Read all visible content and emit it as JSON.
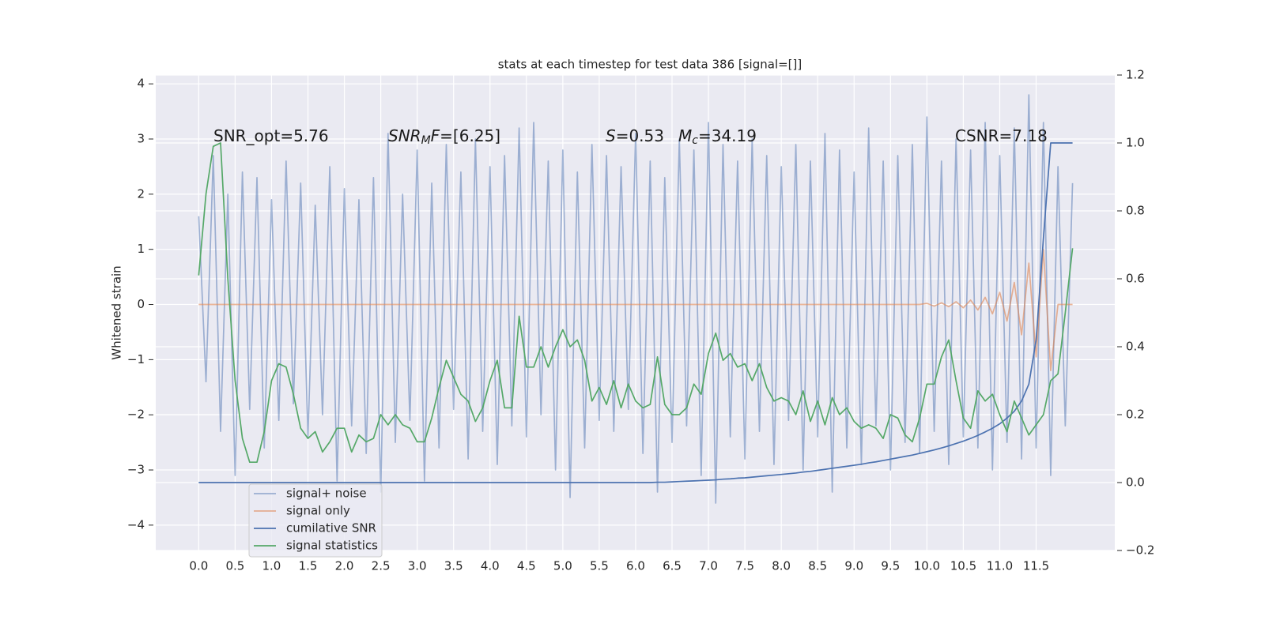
{
  "chart_data": {
    "type": "line",
    "title": "stats at each timestep for test data 386 [signal=[]]",
    "ylabel": "Whitened strain",
    "annotations": [
      [
        {
          "text": "SNR_opt=5.76"
        }
      ],
      [
        {
          "text": "SNR",
          "style": "italic"
        },
        {
          "text": "M",
          "style": "italic-sub"
        },
        {
          "text": "F",
          "style": "italic"
        },
        {
          "text": "=[6.25]"
        }
      ],
      [
        {
          "text": "S",
          "style": "italic"
        },
        {
          "text": "=0.53"
        }
      ],
      [
        {
          "text": "M",
          "style": "italic"
        },
        {
          "text": "c",
          "style": "italic-sub"
        },
        {
          "text": "=34.19"
        }
      ],
      [
        {
          "text": "CSNR=7.18"
        }
      ]
    ],
    "x": [
      0,
      0.1,
      0.2,
      0.3,
      0.4,
      0.5,
      0.6,
      0.7,
      0.8,
      0.9,
      1,
      1.1,
      1.2,
      1.3,
      1.4,
      1.5,
      1.6,
      1.7,
      1.8,
      1.9,
      2,
      2.1,
      2.2,
      2.3,
      2.4,
      2.5,
      2.6,
      2.7,
      2.8,
      2.9,
      3,
      3.1,
      3.2,
      3.3,
      3.4,
      3.5,
      3.6,
      3.7,
      3.8,
      3.9,
      4,
      4.1,
      4.2,
      4.3,
      4.4,
      4.5,
      4.6,
      4.7,
      4.8,
      4.9,
      5,
      5.1,
      5.2,
      5.3,
      5.4,
      5.5,
      5.6,
      5.7,
      5.8,
      5.9,
      6,
      6.1,
      6.2,
      6.3,
      6.4,
      6.5,
      6.6,
      6.7,
      6.8,
      6.9,
      7,
      7.1,
      7.2,
      7.3,
      7.4,
      7.5,
      7.6,
      7.7,
      7.8,
      7.9,
      8,
      8.1,
      8.2,
      8.3,
      8.4,
      8.5,
      8.6,
      8.7,
      8.8,
      8.9,
      9,
      9.1,
      9.2,
      9.3,
      9.4,
      9.5,
      9.6,
      9.7,
      9.8,
      9.9,
      10,
      10.1,
      10.2,
      10.3,
      10.4,
      10.5,
      10.6,
      10.7,
      10.8,
      10.9,
      11,
      11.1,
      11.2,
      11.3,
      11.4,
      11.5,
      11.6,
      11.7,
      11.8,
      11.9,
      12
    ],
    "series": [
      {
        "name": "signal+ noise",
        "color": "#4c72b0",
        "opacity": 0.5,
        "values": [
          1.6,
          -1.4,
          2.7,
          -2.3,
          2.0,
          -3.1,
          2.4,
          -1.9,
          2.3,
          -2.6,
          1.9,
          -2.1,
          2.6,
          -1.8,
          2.2,
          -2.4,
          1.8,
          -2.0,
          2.5,
          -3.2,
          2.1,
          -2.2,
          1.9,
          -2.7,
          2.3,
          -3.4,
          3.1,
          -2.5,
          2.0,
          -2.1,
          2.8,
          -3.2,
          2.2,
          -2.6,
          2.9,
          -1.9,
          2.4,
          -2.8,
          3.0,
          -2.3,
          2.5,
          -2.9,
          2.7,
          -2.2,
          3.2,
          -2.4,
          3.3,
          -2.0,
          2.6,
          -3.0,
          2.8,
          -3.5,
          2.4,
          -2.6,
          2.9,
          -2.1,
          2.7,
          -2.3,
          2.5,
          -1.9,
          3.1,
          -2.7,
          2.6,
          -3.4,
          2.3,
          -2.5,
          3.0,
          -2.2,
          2.8,
          -3.1,
          3.3,
          -3.6,
          2.9,
          -2.4,
          2.6,
          -2.8,
          3.0,
          -2.3,
          2.7,
          -2.9,
          2.5,
          -2.1,
          2.9,
          -3.0,
          2.6,
          -2.4,
          3.1,
          -3.4,
          2.8,
          -2.6,
          2.4,
          -2.9,
          3.2,
          -2.2,
          2.6,
          -3.0,
          2.7,
          -2.5,
          2.9,
          -2.7,
          3.4,
          -2.3,
          2.6,
          -2.9,
          3.0,
          -2.4,
          2.8,
          -2.6,
          3.3,
          -3.0,
          2.7,
          -2.5,
          3.2,
          -2.8,
          3.8,
          -2.6,
          3.3,
          -3.1,
          2.5,
          -2.2,
          2.2
        ]
      },
      {
        "name": "signal only",
        "color": "#dd8452",
        "opacity": 0.6,
        "values": [
          0,
          0,
          0,
          0,
          0,
          0,
          0,
          0,
          0,
          0,
          0,
          0,
          0,
          0,
          0,
          0,
          0,
          0,
          0,
          0,
          0,
          0,
          0,
          0,
          0,
          0,
          0,
          0,
          0,
          0,
          0,
          0,
          0,
          0,
          0,
          0,
          0,
          0,
          0,
          0,
          0,
          0,
          0,
          0,
          0,
          0,
          0,
          0,
          0,
          0,
          0,
          0,
          0,
          0,
          0,
          0,
          0,
          0,
          0,
          0,
          0,
          0,
          0,
          0,
          0,
          0,
          0,
          0,
          0,
          0,
          0,
          0,
          0,
          0,
          0,
          0,
          0,
          0,
          0,
          0,
          0,
          0,
          0,
          0,
          0,
          0,
          0,
          0,
          0,
          0,
          0,
          0,
          0,
          0,
          0,
          0,
          0,
          0,
          0,
          0,
          0.02,
          -0.03,
          0.03,
          -0.04,
          0.05,
          -0.06,
          0.08,
          -0.1,
          0.13,
          -0.17,
          0.22,
          -0.3,
          0.4,
          -0.55,
          0.75,
          -0.95,
          1.0,
          -1.2,
          0,
          0,
          0
        ]
      },
      {
        "name": "cumilative SNR",
        "color": "#4c72b0",
        "opacity": 1,
        "axis": "y2",
        "values": [
          0,
          0,
          0,
          0,
          0,
          0,
          0,
          0,
          0,
          0,
          0,
          0,
          0,
          0,
          0,
          0,
          0,
          0,
          0,
          0,
          0,
          0,
          0,
          0,
          0,
          0,
          0,
          0,
          0,
          0,
          0,
          0,
          0,
          0,
          0,
          0,
          0,
          0,
          0,
          0,
          0,
          0,
          0,
          0,
          0,
          0,
          0,
          0,
          0,
          0,
          0,
          0,
          0,
          0,
          0,
          0,
          0,
          0,
          0,
          0,
          0,
          0,
          0,
          0.001,
          0.001,
          0.002,
          0.003,
          0.004,
          0.005,
          0.006,
          0.007,
          0.008,
          0.01,
          0.011,
          0.013,
          0.014,
          0.016,
          0.018,
          0.02,
          0.022,
          0.024,
          0.026,
          0.028,
          0.031,
          0.033,
          0.036,
          0.039,
          0.042,
          0.045,
          0.048,
          0.051,
          0.054,
          0.058,
          0.061,
          0.065,
          0.069,
          0.073,
          0.077,
          0.081,
          0.086,
          0.091,
          0.096,
          0.102,
          0.108,
          0.115,
          0.122,
          0.13,
          0.139,
          0.149,
          0.16,
          0.173,
          0.19,
          0.21,
          0.24,
          0.29,
          0.42,
          0.72,
          1.0,
          1.0,
          1.0,
          1.0
        ]
      },
      {
        "name": "signal statistics",
        "color": "#55a868",
        "opacity": 1,
        "axis": "y2",
        "values": [
          0.61,
          0.85,
          0.99,
          1.0,
          0.6,
          0.3,
          0.13,
          0.06,
          0.06,
          0.15,
          0.3,
          0.35,
          0.34,
          0.26,
          0.16,
          0.13,
          0.15,
          0.09,
          0.12,
          0.16,
          0.16,
          0.09,
          0.14,
          0.12,
          0.13,
          0.2,
          0.17,
          0.2,
          0.17,
          0.16,
          0.12,
          0.12,
          0.19,
          0.28,
          0.36,
          0.31,
          0.26,
          0.24,
          0.18,
          0.22,
          0.3,
          0.36,
          0.22,
          0.22,
          0.49,
          0.34,
          0.34,
          0.4,
          0.34,
          0.4,
          0.45,
          0.4,
          0.42,
          0.36,
          0.24,
          0.28,
          0.23,
          0.3,
          0.22,
          0.29,
          0.24,
          0.22,
          0.23,
          0.37,
          0.23,
          0.2,
          0.2,
          0.22,
          0.29,
          0.26,
          0.38,
          0.44,
          0.36,
          0.38,
          0.34,
          0.35,
          0.3,
          0.35,
          0.28,
          0.24,
          0.25,
          0.24,
          0.2,
          0.27,
          0.18,
          0.24,
          0.17,
          0.25,
          0.2,
          0.22,
          0.18,
          0.16,
          0.17,
          0.16,
          0.13,
          0.2,
          0.19,
          0.14,
          0.12,
          0.19,
          0.29,
          0.29,
          0.37,
          0.42,
          0.3,
          0.19,
          0.16,
          0.27,
          0.24,
          0.26,
          0.2,
          0.15,
          0.24,
          0.19,
          0.14,
          0.17,
          0.2,
          0.3,
          0.32,
          0.5,
          0.69
        ]
      }
    ],
    "xlim": [
      -0.59,
      12.58
    ],
    "xticks": [
      {
        "value": 0,
        "label": "0.0"
      },
      0.5,
      {
        "value": 1,
        "label": "1.0"
      },
      1.5,
      {
        "value": 2,
        "label": "2.0"
      },
      2.5,
      {
        "value": 3,
        "label": "3.0"
      },
      3.5,
      {
        "value": 4,
        "label": "4.0"
      },
      4.5,
      {
        "value": 5,
        "label": "5.0"
      },
      5.5,
      {
        "value": 6,
        "label": "6.0"
      },
      6.5,
      {
        "value": 7,
        "label": "7.0"
      },
      7.5,
      {
        "value": 8,
        "label": "8.0"
      },
      8.5,
      {
        "value": 9,
        "label": "9.0"
      },
      9.5,
      {
        "value": 10,
        "label": "10.0"
      },
      10.5,
      {
        "value": 11,
        "label": "11.0"
      },
      11.5
    ],
    "ylim": [
      -4.46,
      4.16
    ],
    "yticks": [
      {
        "value": -4,
        "label": "−4"
      },
      {
        "value": -3,
        "label": "−3"
      },
      {
        "value": -2,
        "label": "−2"
      },
      {
        "value": -1,
        "label": "−1"
      },
      0,
      1,
      2,
      3,
      4
    ],
    "y2lim": [
      -0.2,
      1.2
    ],
    "y2ticks": [
      {
        "value": -0.2,
        "label": "−0.2"
      },
      {
        "value": 0,
        "label": "0.0"
      },
      0.2,
      0.4,
      0.6,
      0.8,
      {
        "value": 1,
        "label": "1.0"
      },
      1.2
    ],
    "grid": true,
    "legend": "lower left"
  }
}
